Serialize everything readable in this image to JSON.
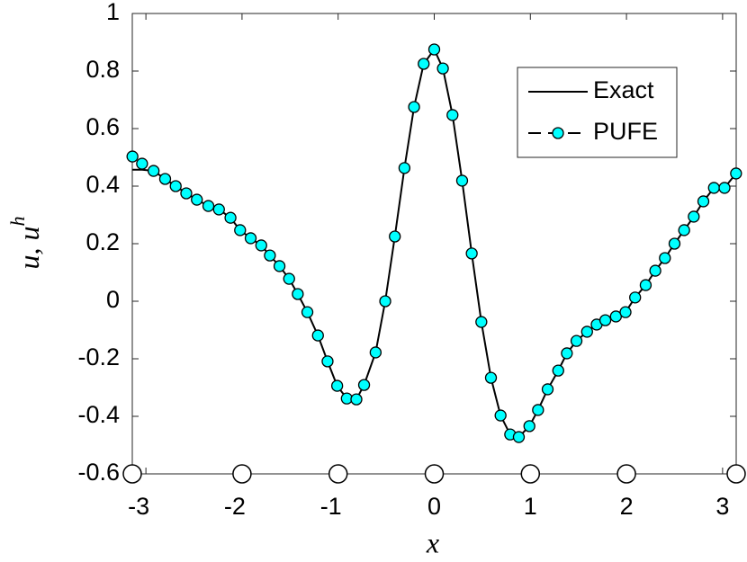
{
  "chart_data": {
    "type": "line",
    "xlabel": "x",
    "ylabel": "u, u",
    "ylabel_superscript": "h",
    "xlim": [
      -3.1416,
      3.1416
    ],
    "ylim": [
      -0.6,
      1
    ],
    "xticks": [
      -3,
      -2,
      -1,
      0,
      1,
      2,
      3
    ],
    "yticks": [
      -0.6,
      -0.4,
      -0.2,
      0,
      0.2,
      0.4,
      0.6,
      0.8,
      1
    ],
    "legend": "top-right",
    "series": [
      {
        "name": "Exact",
        "color": "#000000",
        "style": "solid",
        "x": [
          -3.14,
          -3.04,
          -2.92,
          -2.8,
          -2.69,
          -2.58,
          -2.47,
          -2.35,
          -2.24,
          -2.12,
          -2.02,
          -1.91,
          -1.8,
          -1.71,
          -1.61,
          -1.51,
          -1.42,
          -1.32,
          -1.21,
          -1.11,
          -1.01,
          -0.91,
          -0.81,
          -0.73,
          -0.61,
          -0.51,
          -0.41,
          -0.31,
          -0.21,
          -0.11,
          0,
          0.09,
          0.19,
          0.29,
          0.39,
          0.49,
          0.59,
          0.69,
          0.79,
          0.88,
          0.99,
          1.08,
          1.18,
          1.29,
          1.38,
          1.48,
          1.59,
          1.69,
          1.78,
          1.89,
          1.99,
          2.09,
          2.2,
          2.3,
          2.4,
          2.5,
          2.6,
          2.7,
          2.8,
          2.91,
          3.02,
          3.14
        ],
        "values": [
          0.457,
          0.457,
          0.453,
          0.425,
          0.4,
          0.375,
          0.353,
          0.331,
          0.319,
          0.29,
          0.247,
          0.219,
          0.194,
          0.159,
          0.122,
          0.078,
          0.025,
          -0.038,
          -0.119,
          -0.209,
          -0.294,
          -0.338,
          -0.341,
          -0.291,
          -0.178,
          0,
          0.225,
          0.463,
          0.675,
          0.825,
          0.875,
          0.809,
          0.647,
          0.419,
          0.166,
          -0.072,
          -0.266,
          -0.397,
          -0.463,
          -0.472,
          -0.434,
          -0.378,
          -0.306,
          -0.241,
          -0.181,
          -0.138,
          -0.106,
          -0.081,
          -0.066,
          -0.053,
          -0.038,
          0.013,
          0.056,
          0.106,
          0.15,
          0.2,
          0.247,
          0.294,
          0.347,
          0.394,
          0.394,
          0.444
        ]
      },
      {
        "name": "PUFE",
        "color": "#00ffff",
        "style": "dashed-circle",
        "x": [
          -3.14,
          -3.04,
          -2.92,
          -2.8,
          -2.69,
          -2.58,
          -2.47,
          -2.35,
          -2.24,
          -2.12,
          -2.02,
          -1.91,
          -1.8,
          -1.71,
          -1.61,
          -1.51,
          -1.42,
          -1.32,
          -1.21,
          -1.11,
          -1.01,
          -0.91,
          -0.81,
          -0.73,
          -0.61,
          -0.51,
          -0.41,
          -0.31,
          -0.21,
          -0.11,
          0,
          0.09,
          0.19,
          0.29,
          0.39,
          0.49,
          0.59,
          0.69,
          0.79,
          0.88,
          0.99,
          1.08,
          1.18,
          1.29,
          1.38,
          1.48,
          1.59,
          1.69,
          1.78,
          1.89,
          1.99,
          2.09,
          2.2,
          2.3,
          2.4,
          2.5,
          2.6,
          2.7,
          2.8,
          2.91,
          3.02,
          3.14
        ],
        "values": [
          0.503,
          0.478,
          0.453,
          0.425,
          0.4,
          0.375,
          0.353,
          0.331,
          0.319,
          0.29,
          0.247,
          0.219,
          0.194,
          0.159,
          0.122,
          0.078,
          0.025,
          -0.038,
          -0.119,
          -0.209,
          -0.294,
          -0.338,
          -0.341,
          -0.291,
          -0.178,
          0,
          0.225,
          0.463,
          0.675,
          0.825,
          0.875,
          0.809,
          0.647,
          0.419,
          0.166,
          -0.072,
          -0.266,
          -0.397,
          -0.463,
          -0.472,
          -0.434,
          -0.378,
          -0.306,
          -0.241,
          -0.181,
          -0.138,
          -0.106,
          -0.081,
          -0.066,
          -0.053,
          -0.038,
          0.013,
          0.056,
          0.106,
          0.15,
          0.2,
          0.247,
          0.294,
          0.347,
          0.394,
          0.394,
          0.444
        ]
      }
    ],
    "nodes": {
      "x": [
        -3.1416,
        -2,
        -1,
        0,
        1,
        2,
        3.1416
      ],
      "y": [
        -0.6,
        -0.6,
        -0.6,
        -0.6,
        -0.6,
        -0.6,
        -0.6
      ]
    }
  }
}
